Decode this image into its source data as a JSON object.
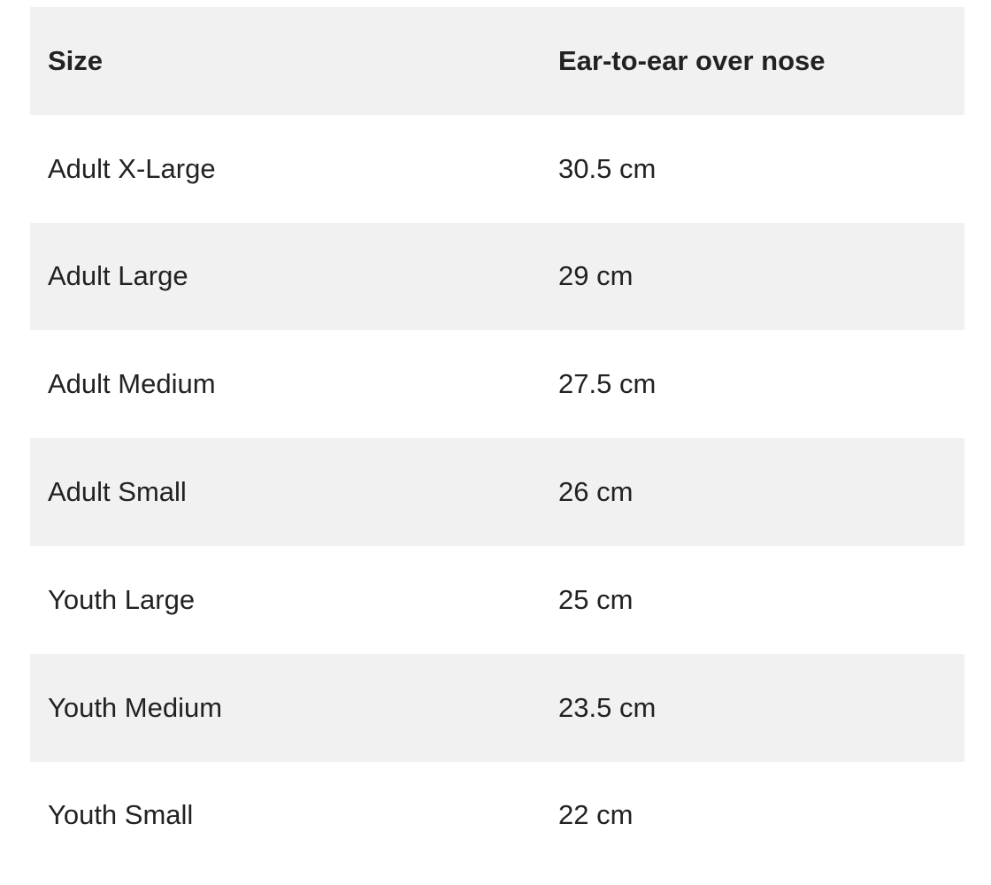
{
  "table": {
    "headers": [
      "Size",
      "Ear-to-ear over nose"
    ],
    "rows": [
      [
        "Adult X-Large",
        "30.5 cm"
      ],
      [
        "Adult Large",
        "29 cm"
      ],
      [
        "Adult Medium",
        "27.5 cm"
      ],
      [
        "Adult Small",
        "26 cm"
      ],
      [
        "Youth Large",
        "25 cm"
      ],
      [
        "Youth Medium",
        "23.5 cm"
      ],
      [
        "Youth Small",
        "22 cm"
      ]
    ],
    "colors": {
      "shaded_row": "#f1f1f1",
      "text": "#222222"
    }
  }
}
